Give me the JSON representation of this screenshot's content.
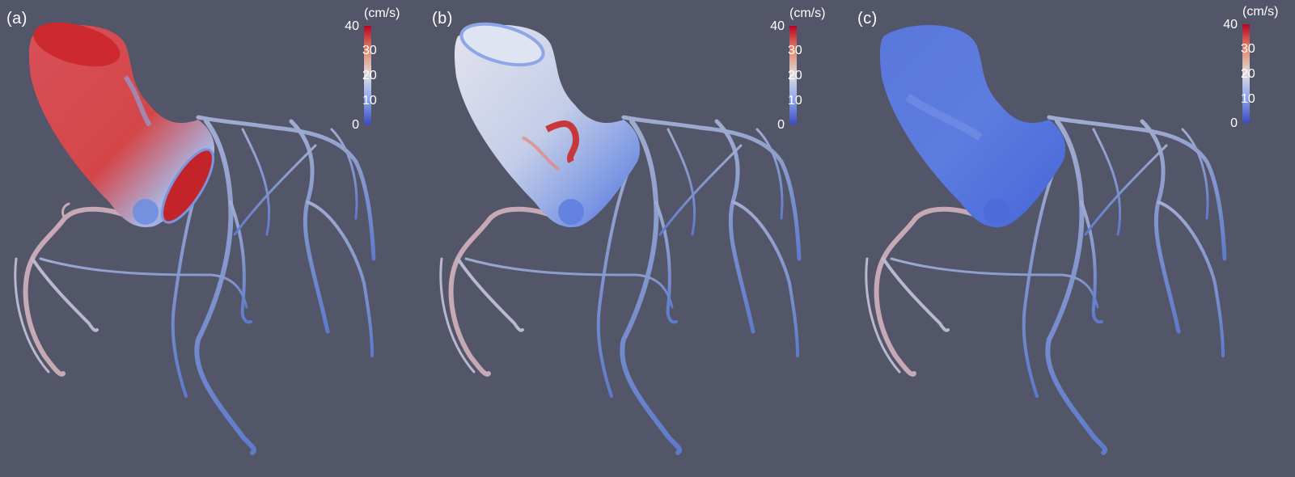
{
  "panels": [
    {
      "label": "(a)",
      "state": "aorta-high-velocity"
    },
    {
      "label": "(b)",
      "state": "aorta-mixed-velocity"
    },
    {
      "label": "(c)",
      "state": "aorta-low-velocity"
    }
  ],
  "colorbar": {
    "unit": "(cm/s)",
    "ticks": [
      "40",
      "30",
      "20",
      "10",
      "0"
    ],
    "min": 0,
    "max": 40,
    "colors": {
      "low": "#3b4cc0",
      "mid": "#dddddd",
      "high": "#b40426"
    }
  },
  "colors": {
    "background": "#535568",
    "vessel": "#8fa2d6"
  }
}
